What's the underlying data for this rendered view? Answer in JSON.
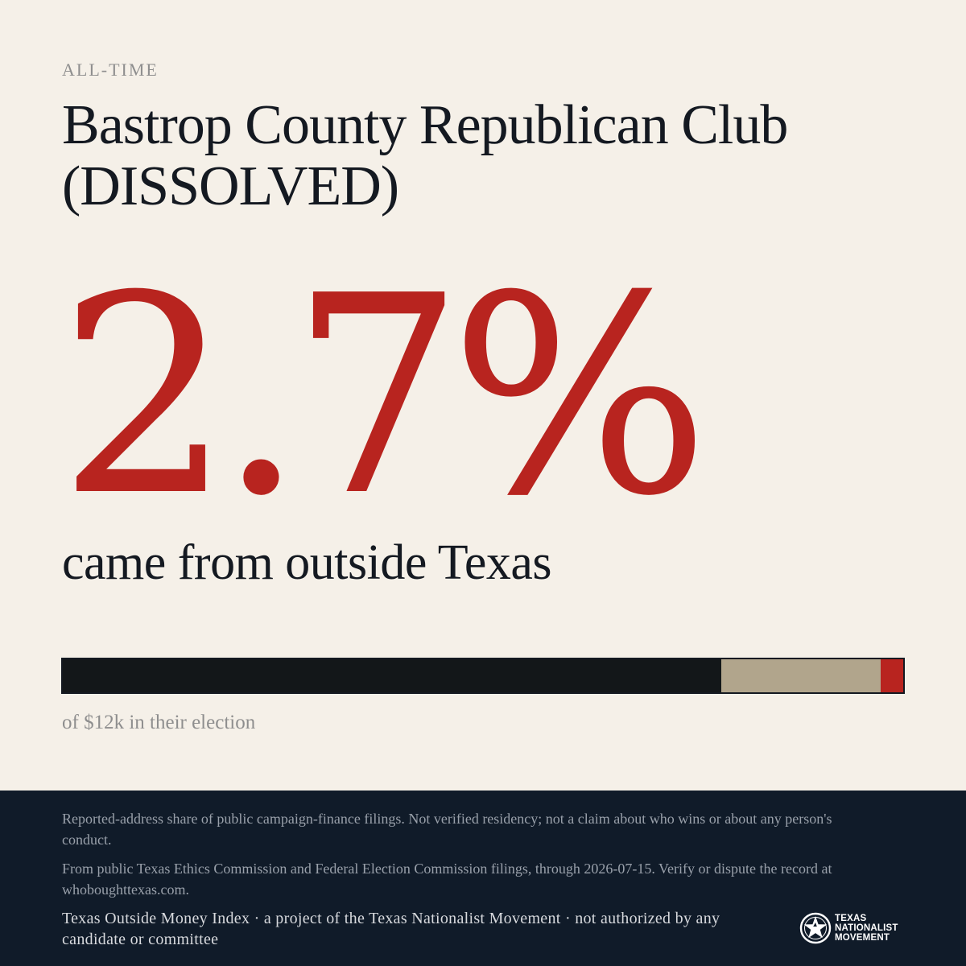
{
  "kicker": "ALL-TIME",
  "title": "Bastrop County Republican Club (DISSOLVED)",
  "headline_value": "2.7%",
  "headline_sub": "came from outside Texas",
  "share_bar": {
    "segments": [
      {
        "key": "in_state",
        "share": 0.784,
        "color": "#131719"
      },
      {
        "key": "unknown",
        "share": 0.189,
        "color": "#b1a58c"
      },
      {
        "key": "outside",
        "share": 0.027,
        "color": "#b8241f"
      }
    ]
  },
  "total_line": "of $12k in their election",
  "footer": {
    "disclaimer_1": "Reported-address share of public campaign-finance filings. Not verified residency; not a claim about who wins or about any person's conduct.",
    "disclaimer_2": "From public Texas Ethics Commission and Federal Election Commission filings, through 2026-07-15. Verify or dispute the record at whoboughttexas.com.",
    "credit": "Texas Outside Money Index · a project of the Texas Nationalist Movement · not authorized by any candidate or committee",
    "logo": {
      "icon": "star-seal-icon",
      "line1": "TEXAS",
      "line2": "NATIONALIST",
      "line3": "MOVEMENT"
    }
  }
}
